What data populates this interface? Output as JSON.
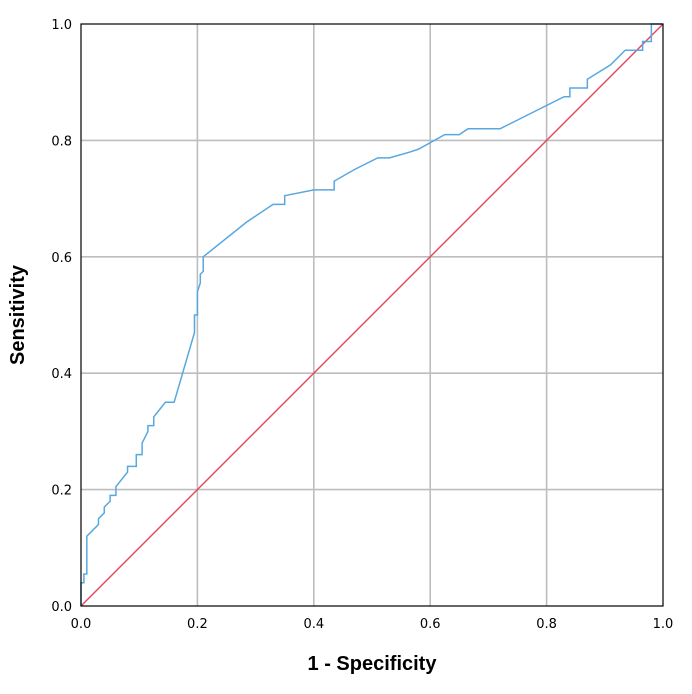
{
  "chart_data": {
    "type": "line",
    "title": "",
    "xlabel": "1 - Specificity",
    "ylabel": "Sensitivity",
    "xlim": [
      0.0,
      1.0
    ],
    "ylim": [
      0.0,
      1.0
    ],
    "x_ticks": [
      "0.0",
      "0.2",
      "0.4",
      "0.6",
      "0.8",
      "1.0"
    ],
    "y_ticks": [
      "0.0",
      "0.2",
      "0.4",
      "0.6",
      "0.8",
      "1.0"
    ],
    "grid": true,
    "legend": "none",
    "series": [
      {
        "color": "#58a8e0",
        "step": true,
        "points": [
          [
            0.0,
            0.0
          ],
          [
            0.0,
            0.04
          ],
          [
            0.005,
            0.04
          ],
          [
            0.005,
            0.055
          ],
          [
            0.01,
            0.055
          ],
          [
            0.01,
            0.12
          ],
          [
            0.03,
            0.14
          ],
          [
            0.03,
            0.15
          ],
          [
            0.04,
            0.16
          ],
          [
            0.04,
            0.17
          ],
          [
            0.05,
            0.18
          ],
          [
            0.05,
            0.19
          ],
          [
            0.06,
            0.19
          ],
          [
            0.06,
            0.205
          ],
          [
            0.08,
            0.23
          ],
          [
            0.08,
            0.24
          ],
          [
            0.095,
            0.24
          ],
          [
            0.095,
            0.26
          ],
          [
            0.105,
            0.26
          ],
          [
            0.105,
            0.28
          ],
          [
            0.115,
            0.3
          ],
          [
            0.115,
            0.31
          ],
          [
            0.125,
            0.31
          ],
          [
            0.125,
            0.325
          ],
          [
            0.145,
            0.35
          ],
          [
            0.16,
            0.35
          ],
          [
            0.195,
            0.47
          ],
          [
            0.195,
            0.5
          ],
          [
            0.2,
            0.5
          ],
          [
            0.2,
            0.54
          ],
          [
            0.205,
            0.555
          ],
          [
            0.205,
            0.57
          ],
          [
            0.21,
            0.575
          ],
          [
            0.21,
            0.6
          ],
          [
            0.285,
            0.66
          ],
          [
            0.33,
            0.69
          ],
          [
            0.35,
            0.69
          ],
          [
            0.35,
            0.705
          ],
          [
            0.4,
            0.715
          ],
          [
            0.435,
            0.715
          ],
          [
            0.435,
            0.73
          ],
          [
            0.47,
            0.75
          ],
          [
            0.51,
            0.77
          ],
          [
            0.53,
            0.77
          ],
          [
            0.565,
            0.78
          ],
          [
            0.58,
            0.785
          ],
          [
            0.625,
            0.81
          ],
          [
            0.65,
            0.81
          ],
          [
            0.665,
            0.82
          ],
          [
            0.72,
            0.82
          ],
          [
            0.76,
            0.84
          ],
          [
            0.83,
            0.875
          ],
          [
            0.84,
            0.875
          ],
          [
            0.84,
            0.89
          ],
          [
            0.87,
            0.89
          ],
          [
            0.87,
            0.905
          ],
          [
            0.91,
            0.93
          ],
          [
            0.935,
            0.955
          ],
          [
            0.965,
            0.955
          ],
          [
            0.965,
            0.97
          ],
          [
            0.98,
            0.97
          ],
          [
            0.98,
            1.0
          ],
          [
            1.0,
            1.0
          ]
        ]
      },
      {
        "color": "#e8445a",
        "step": false,
        "points": [
          [
            0.0,
            0.0
          ],
          [
            1.0,
            1.0
          ]
        ]
      }
    ]
  }
}
